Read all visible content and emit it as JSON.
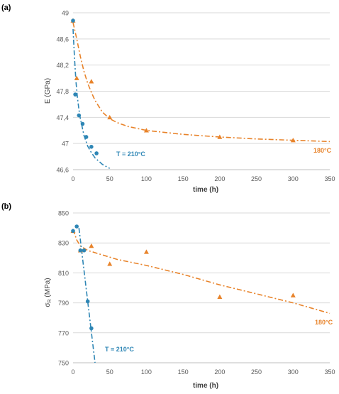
{
  "colors": {
    "orange": "#E8832A",
    "blue": "#2E86B5",
    "grid": "#D9D9D9",
    "axis_text": "#595959"
  },
  "chart_data": [
    {
      "panel_label": "(a)",
      "type": "scatter",
      "xlabel": "time (h)",
      "ylabel": "E (GPa)",
      "xlim": [
        0,
        350
      ],
      "ylim": [
        46.6,
        49
      ],
      "x_ticks": [
        0,
        50,
        100,
        150,
        200,
        250,
        300,
        350
      ],
      "y_ticks": [
        46.6,
        47,
        47.4,
        47.8,
        48.2,
        48.6,
        49
      ],
      "x_tick_labels": [
        "0",
        "50",
        "100",
        "150",
        "200",
        "250",
        "300",
        "350"
      ],
      "y_tick_labels": [
        "46,6",
        "47",
        "47,4",
        "47,8",
        "48,2",
        "48,6",
        "49"
      ],
      "grid": "horizontal",
      "series": [
        {
          "label": "180°C",
          "marker": "triangle",
          "points": [
            [
              0,
              48.88
            ],
            [
              5,
              48.0
            ],
            [
              25,
              47.95
            ],
            [
              50,
              47.4
            ],
            [
              100,
              47.2
            ],
            [
              200,
              47.1
            ],
            [
              300,
              47.05
            ]
          ],
          "trend": [
            [
              0,
              48.85
            ],
            [
              5,
              48.6
            ],
            [
              10,
              48.33
            ],
            [
              15,
              48.1
            ],
            [
              20,
              47.92
            ],
            [
              25,
              47.78
            ],
            [
              30,
              47.66
            ],
            [
              40,
              47.48
            ],
            [
              50,
              47.38
            ],
            [
              60,
              47.32
            ],
            [
              75,
              47.26
            ],
            [
              100,
              47.2
            ],
            [
              150,
              47.14
            ],
            [
              200,
              47.1
            ],
            [
              250,
              47.07
            ],
            [
              300,
              47.05
            ],
            [
              350,
              47.03
            ]
          ]
        },
        {
          "label": "T = 210°C",
          "marker": "circle",
          "points": [
            [
              0,
              48.88
            ],
            [
              3,
              47.75
            ],
            [
              8,
              47.43
            ],
            [
              13,
              47.3
            ],
            [
              18,
              47.1
            ],
            [
              25,
              46.95
            ],
            [
              32,
              46.85
            ]
          ],
          "trend": [
            [
              0,
              48.75
            ],
            [
              2,
              48.3
            ],
            [
              4,
              47.95
            ],
            [
              6,
              47.7
            ],
            [
              8,
              47.52
            ],
            [
              10,
              47.38
            ],
            [
              15,
              47.12
            ],
            [
              20,
              46.96
            ],
            [
              25,
              46.86
            ],
            [
              30,
              46.78
            ],
            [
              40,
              46.68
            ],
            [
              50,
              46.62
            ]
          ]
        }
      ]
    },
    {
      "panel_label": "(b)",
      "type": "scatter",
      "xlabel": "time (h)",
      "ylabel_main": "σ",
      "ylabel_sub": "R",
      "ylabel_unit": " (MPa)",
      "xlim": [
        0,
        350
      ],
      "ylim": [
        750,
        850
      ],
      "x_ticks": [
        0,
        50,
        100,
        150,
        200,
        250,
        300,
        350
      ],
      "y_ticks": [
        750,
        770,
        790,
        810,
        830,
        850
      ],
      "x_tick_labels": [
        "0",
        "50",
        "100",
        "150",
        "200",
        "250",
        "300",
        "350"
      ],
      "y_tick_labels": [
        "750",
        "770",
        "790",
        "810",
        "830",
        "850"
      ],
      "grid": "horizontal",
      "series": [
        {
          "label": "180°C",
          "marker": "triangle",
          "points": [
            [
              0,
              838
            ],
            [
              10,
              825
            ],
            [
              25,
              828
            ],
            [
              50,
              816
            ],
            [
              100,
              824
            ],
            [
              200,
              794
            ],
            [
              300,
              795
            ]
          ],
          "trend": [
            [
              0,
              839
            ],
            [
              5,
              832
            ],
            [
              10,
              828
            ],
            [
              20,
              825
            ],
            [
              40,
              822
            ],
            [
              60,
              819
            ],
            [
              100,
              815
            ],
            [
              150,
              809
            ],
            [
              200,
              802
            ],
            [
              250,
              796
            ],
            [
              300,
              790
            ],
            [
              350,
              783
            ]
          ]
        },
        {
          "label": "T = 210°C",
          "marker": "circle",
          "points": [
            [
              0,
              838
            ],
            [
              5,
              841
            ],
            [
              10,
              825
            ],
            [
              15,
              825
            ],
            [
              20,
              791
            ],
            [
              25,
              773
            ]
          ],
          "trend": [
            [
              8,
              840
            ],
            [
              30,
              750
            ]
          ]
        }
      ]
    }
  ]
}
